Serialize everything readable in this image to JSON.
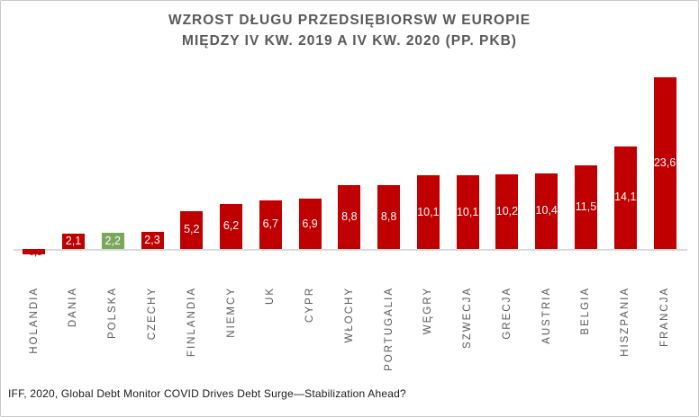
{
  "title": {
    "line1": "WZROST DŁUGU PRZEDSIĘBIORSW W EUROPIE",
    "line2": "MIĘDZY IV KW. 2019 A IV KW. 2020 (PP. PKB)"
  },
  "source_note": "IFF, 2020, Global Debt Monitor COVID Drives Debt Surge—Stabilization Ahead?",
  "chart_data": {
    "type": "bar",
    "title": "WZROST DŁUGU PRZEDSIĘBIORSW W EUROPIE MIĘDZY IV KW. 2019 A IV KW. 2020 (PP. PKB)",
    "categories": [
      "HOLANDIA",
      "DANIA",
      "POLSKA",
      "CZECHY",
      "FINLANDIA",
      "NIEMCY",
      "UK",
      "CYPR",
      "WŁOCHY",
      "PORTUGALIA",
      "WĘGRY",
      "SZWECJA",
      "GRECJA",
      "AUSTRIA",
      "BELGIA",
      "HISZPANIA",
      "FRANCJA"
    ],
    "values": [
      -0.8,
      2.1,
      2.2,
      2.3,
      5.2,
      6.2,
      6.7,
      6.9,
      8.8,
      8.8,
      10.1,
      10.1,
      10.2,
      10.4,
      11.5,
      14.1,
      23.6
    ],
    "value_labels": [
      "-0,8",
      "2,1",
      "2,2",
      "2,3",
      "5,2",
      "6,2",
      "6,7",
      "6,9",
      "8,8",
      "8,8",
      "10,1",
      "10,1",
      "10,2",
      "10,4",
      "11,5",
      "14,1",
      "23,6"
    ],
    "highlight_index": 2,
    "highlight_category": "POLSKA",
    "ylim": [
      -1,
      24
    ],
    "grid": false,
    "legend": false,
    "y_axis_visible": false,
    "label_position": "inside-center",
    "category_label_rotation": -90,
    "colors": {
      "bar": "#c00000",
      "highlight_bar": "#79a85c",
      "value_label": "#ffffff",
      "negative_value_label": "#c00000",
      "axis_line": "#d9d9d9",
      "title_text": "#595959",
      "category_label": "#595959"
    }
  }
}
